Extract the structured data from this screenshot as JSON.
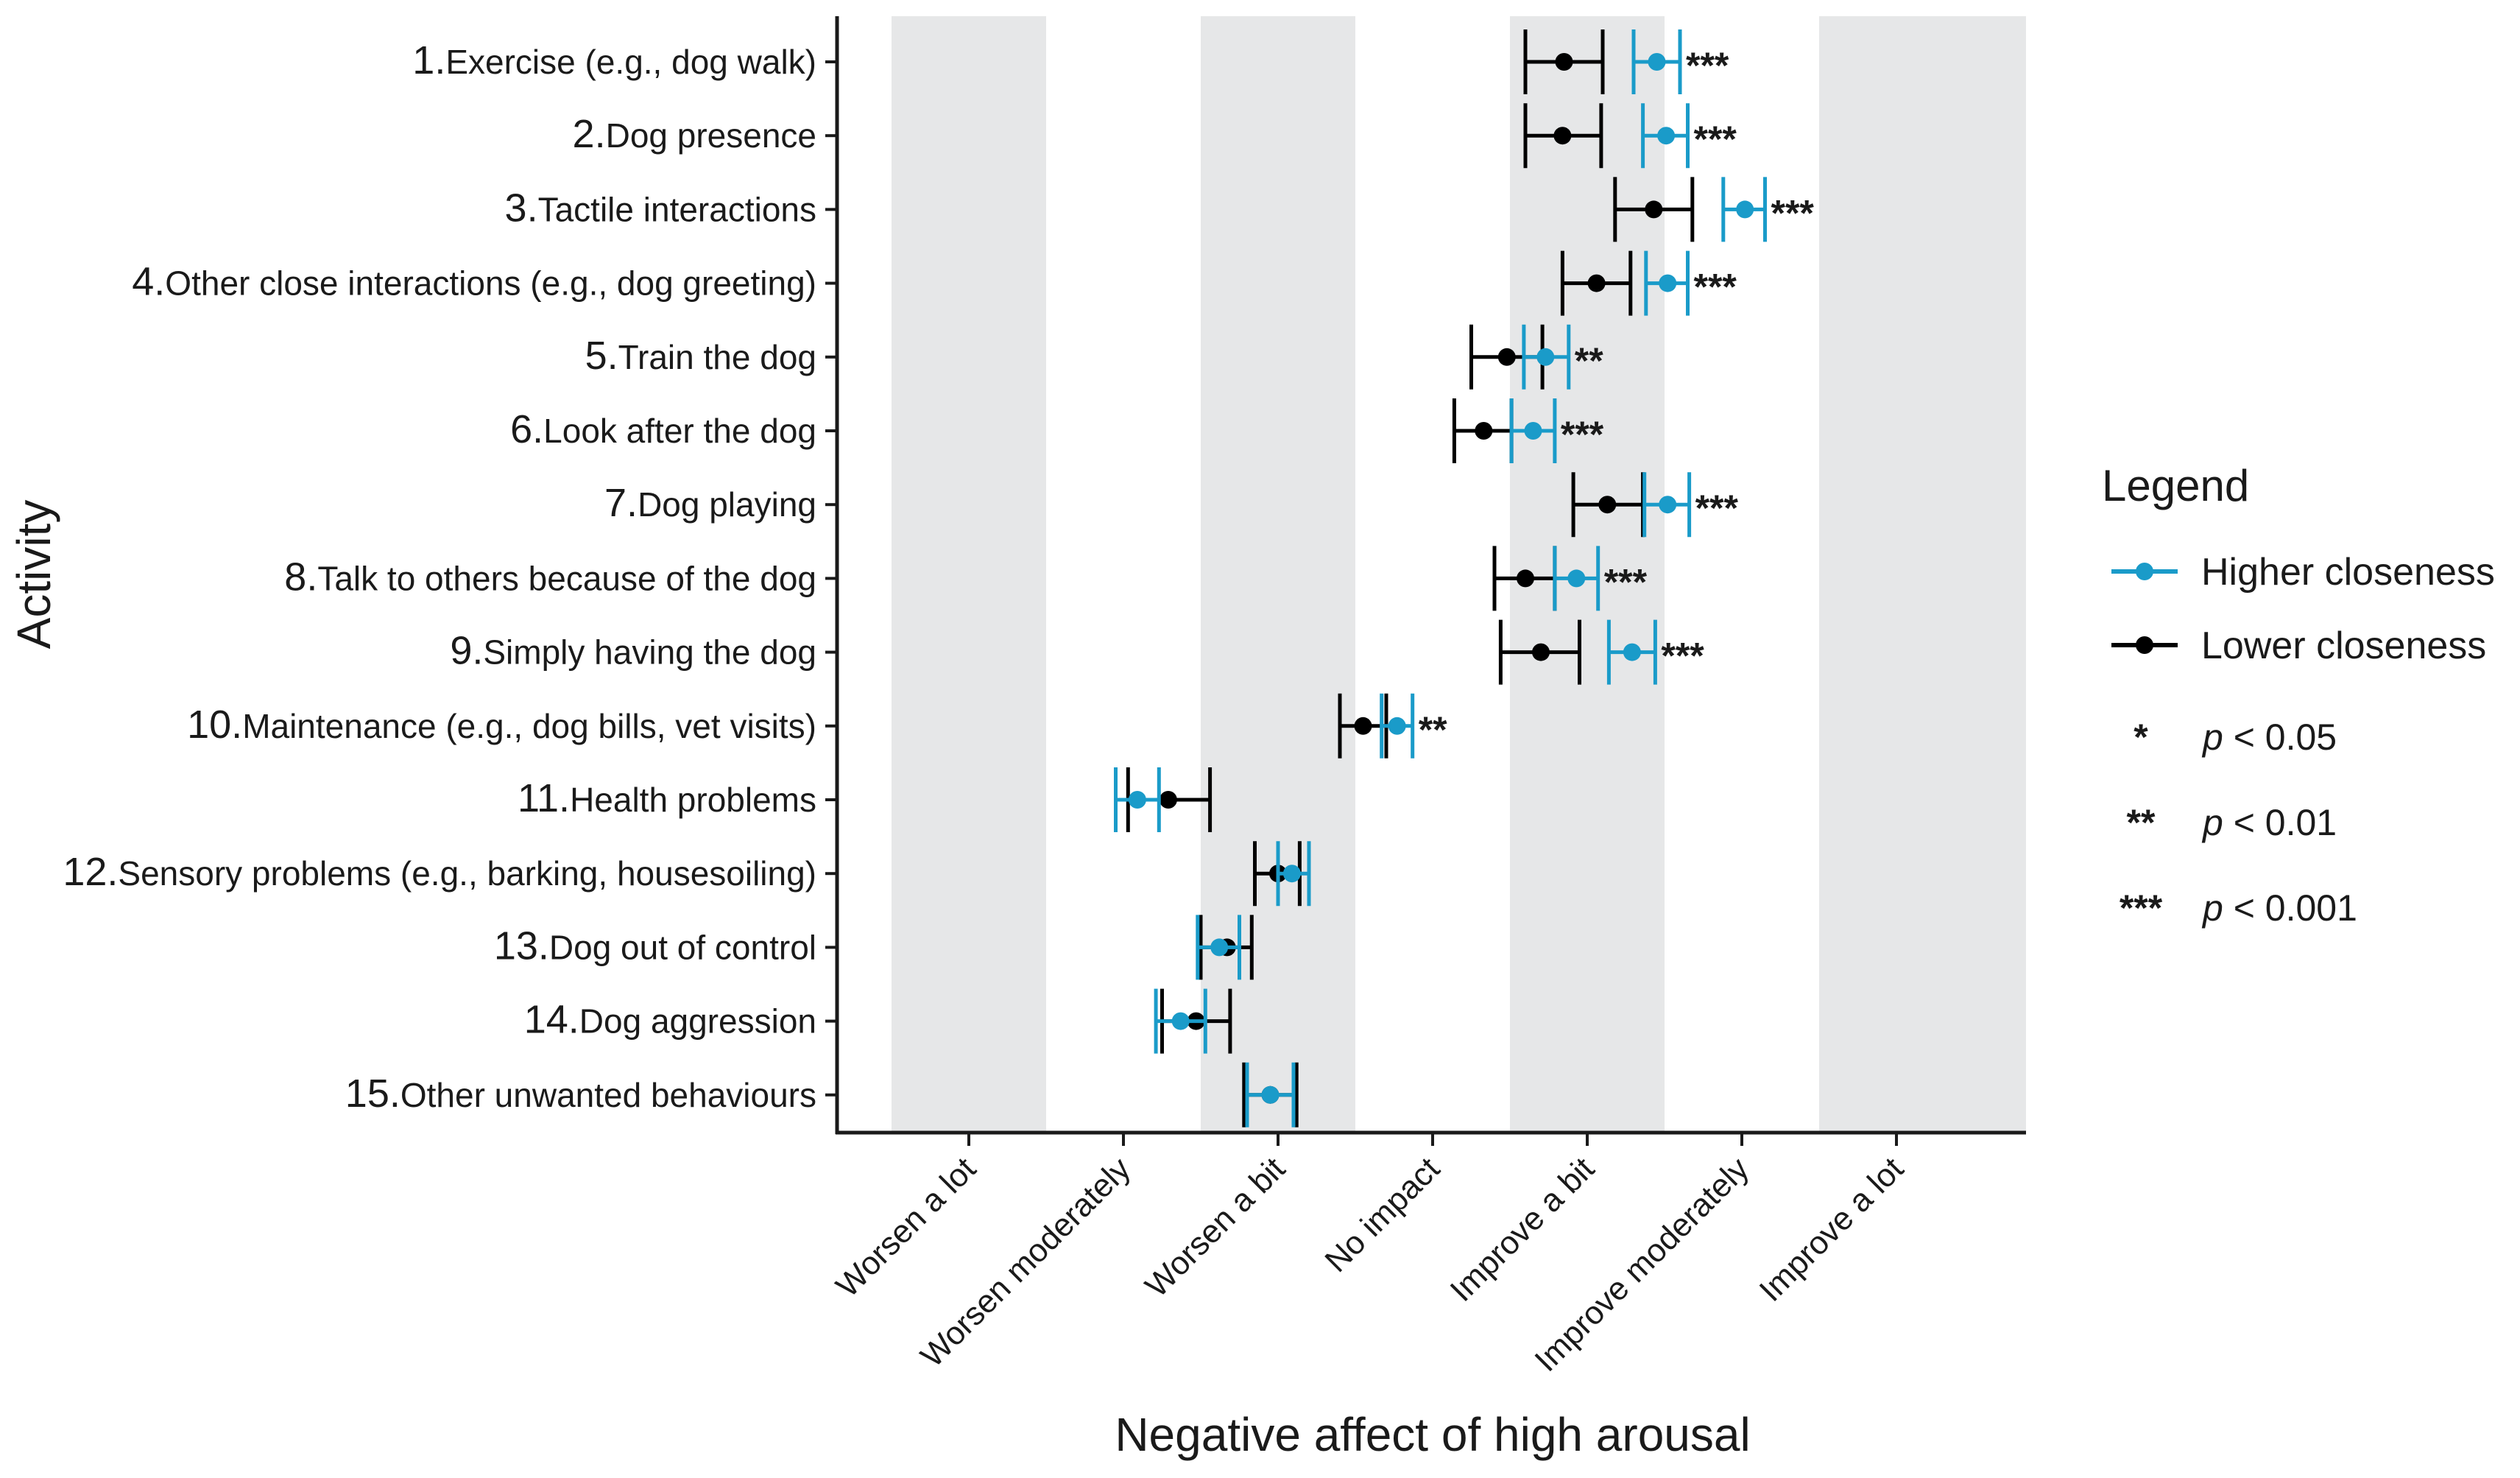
{
  "chart_data": {
    "type": "dot-errorbar",
    "xlabel": "Negative affect of high arousal",
    "ylabel": "Activity",
    "x_categories": [
      "Worsen a lot",
      "Worsen moderately",
      "Worsen a bit",
      "No impact",
      "Improve a bit",
      "Improve moderately",
      "Improve a lot"
    ],
    "xlim": [
      -3.45,
      3.85
    ],
    "grid": "alternating shaded bands",
    "legend": {
      "title": "Legend",
      "entries": [
        {
          "name": "Higher closeness",
          "color": "#1a9bc9"
        },
        {
          "name": "Lower closeness",
          "color": "#000000"
        }
      ],
      "significance": [
        {
          "symbol": "*",
          "p": "p",
          "text": " < 0.05"
        },
        {
          "symbol": "**",
          "p": "p",
          "text": " < 0.01"
        },
        {
          "symbol": "***",
          "p": "p",
          "text": " < 0.001"
        }
      ]
    },
    "activities": [
      {
        "num": "1.",
        "label": "Exercise (e.g., dog walk)",
        "lower": {
          "mean": 0.85,
          "lo": 0.6,
          "hi": 1.1
        },
        "higher": {
          "mean": 1.45,
          "lo": 1.3,
          "hi": 1.6
        },
        "sig": "***"
      },
      {
        "num": "2.",
        "label": "Dog presence",
        "lower": {
          "mean": 0.84,
          "lo": 0.6,
          "hi": 1.09
        },
        "higher": {
          "mean": 1.51,
          "lo": 1.36,
          "hi": 1.65
        },
        "sig": "***"
      },
      {
        "num": "3.",
        "label": "Tactile interactions",
        "lower": {
          "mean": 1.43,
          "lo": 1.18,
          "hi": 1.68
        },
        "higher": {
          "mean": 2.02,
          "lo": 1.88,
          "hi": 2.15
        },
        "sig": "***"
      },
      {
        "num": "4.",
        "label": "Other close interactions (e.g., dog greeting)",
        "lower": {
          "mean": 1.06,
          "lo": 0.84,
          "hi": 1.28
        },
        "higher": {
          "mean": 1.52,
          "lo": 1.38,
          "hi": 1.65
        },
        "sig": "***"
      },
      {
        "num": "5.",
        "label": "Train the dog",
        "lower": {
          "mean": 0.48,
          "lo": 0.25,
          "hi": 0.71
        },
        "higher": {
          "mean": 0.73,
          "lo": 0.59,
          "hi": 0.88
        },
        "sig": "**"
      },
      {
        "num": "6.",
        "label": "Look after the dog",
        "lower": {
          "mean": 0.33,
          "lo": 0.14,
          "hi": 0.51
        },
        "higher": {
          "mean": 0.65,
          "lo": 0.51,
          "hi": 0.79
        },
        "sig": "***"
      },
      {
        "num": "7.",
        "label": "Dog playing",
        "lower": {
          "mean": 1.13,
          "lo": 0.91,
          "hi": 1.36
        },
        "higher": {
          "mean": 1.52,
          "lo": 1.37,
          "hi": 1.66
        },
        "sig": "***"
      },
      {
        "num": "8.",
        "label": "Talk to others because of the dog",
        "lower": {
          "mean": 0.6,
          "lo": 0.4,
          "hi": 0.79
        },
        "higher": {
          "mean": 0.93,
          "lo": 0.79,
          "hi": 1.07
        },
        "sig": "***"
      },
      {
        "num": "9.",
        "label": "Simply having the dog",
        "lower": {
          "mean": 0.7,
          "lo": 0.44,
          "hi": 0.95
        },
        "higher": {
          "mean": 1.29,
          "lo": 1.14,
          "hi": 1.44
        },
        "sig": "***"
      },
      {
        "num": "10.",
        "label": "Maintenance (e.g., dog bills, vet visits)",
        "lower": {
          "mean": -0.45,
          "lo": -0.6,
          "hi": -0.3
        },
        "higher": {
          "mean": -0.23,
          "lo": -0.33,
          "hi": -0.13
        },
        "sig": "**"
      },
      {
        "num": "11.",
        "label": "Health problems",
        "lower": {
          "mean": -1.71,
          "lo": -1.97,
          "hi": -1.44
        },
        "higher": {
          "mean": -1.91,
          "lo": -2.05,
          "hi": -1.77
        },
        "sig": ""
      },
      {
        "num": "12.",
        "label": "Sensory problems (e.g., barking, housesoiling)",
        "lower": {
          "mean": -1.0,
          "lo": -1.15,
          "hi": -0.86
        },
        "higher": {
          "mean": -0.91,
          "lo": -1.0,
          "hi": -0.8
        },
        "sig": ""
      },
      {
        "num": "13.",
        "label": "Dog out of control",
        "lower": {
          "mean": -1.33,
          "lo": -1.5,
          "hi": -1.17
        },
        "higher": {
          "mean": -1.38,
          "lo": -1.52,
          "hi": -1.25
        },
        "sig": ""
      },
      {
        "num": "14.",
        "label": "Dog aggression",
        "lower": {
          "mean": -1.53,
          "lo": -1.75,
          "hi": -1.31
        },
        "higher": {
          "mean": -1.63,
          "lo": -1.79,
          "hi": -1.47
        },
        "sig": ""
      },
      {
        "num": "15.",
        "label": "Other unwanted behaviours",
        "lower": {
          "mean": -1.05,
          "lo": -1.22,
          "hi": -0.88
        },
        "higher": {
          "mean": -1.05,
          "lo": -1.2,
          "hi": -0.9
        },
        "sig": ""
      }
    ]
  }
}
